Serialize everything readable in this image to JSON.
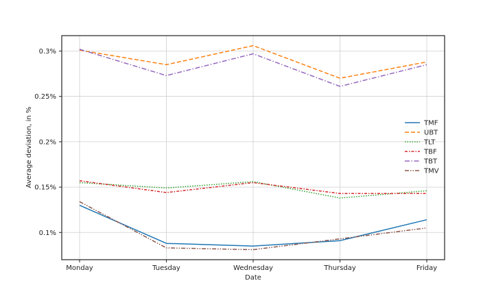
{
  "chart_data": {
    "type": "line",
    "title": "",
    "xlabel": "Date",
    "ylabel": "Average deviation, in %",
    "categories": [
      "Monday",
      "Tuesday",
      "Wednesday",
      "Thursday",
      "Friday"
    ],
    "ylim": [
      0.07,
      0.317
    ],
    "yticks": [
      0.1,
      0.15,
      0.2,
      0.25,
      0.3
    ],
    "ytick_labels": [
      "0.1%",
      "0.15%",
      "0.2%",
      "0.25%",
      "0.3%"
    ],
    "grid": true,
    "legend_position": "right",
    "series": [
      {
        "name": "TMF",
        "color": "#1f77b4",
        "dash": "solid",
        "values": [
          0.13,
          0.088,
          0.085,
          0.091,
          0.114
        ]
      },
      {
        "name": "UBT",
        "color": "#ff7f0e",
        "dash": "dashed",
        "values": [
          0.301,
          0.285,
          0.306,
          0.27,
          0.288
        ]
      },
      {
        "name": "TLT",
        "color": "#2ca02c",
        "dash": "dotted",
        "values": [
          0.155,
          0.149,
          0.156,
          0.138,
          0.146
        ]
      },
      {
        "name": "TBF",
        "color": "#d62728",
        "dash": "dashdot-red",
        "values": [
          0.157,
          0.144,
          0.155,
          0.143,
          0.143
        ]
      },
      {
        "name": "TBT",
        "color": "#9467bd",
        "dash": "dashdot",
        "values": [
          0.302,
          0.273,
          0.297,
          0.261,
          0.285
        ]
      },
      {
        "name": "TMV",
        "color": "#8c564b",
        "dash": "dashdotdot",
        "values": [
          0.134,
          0.083,
          0.081,
          0.093,
          0.105
        ]
      }
    ]
  }
}
